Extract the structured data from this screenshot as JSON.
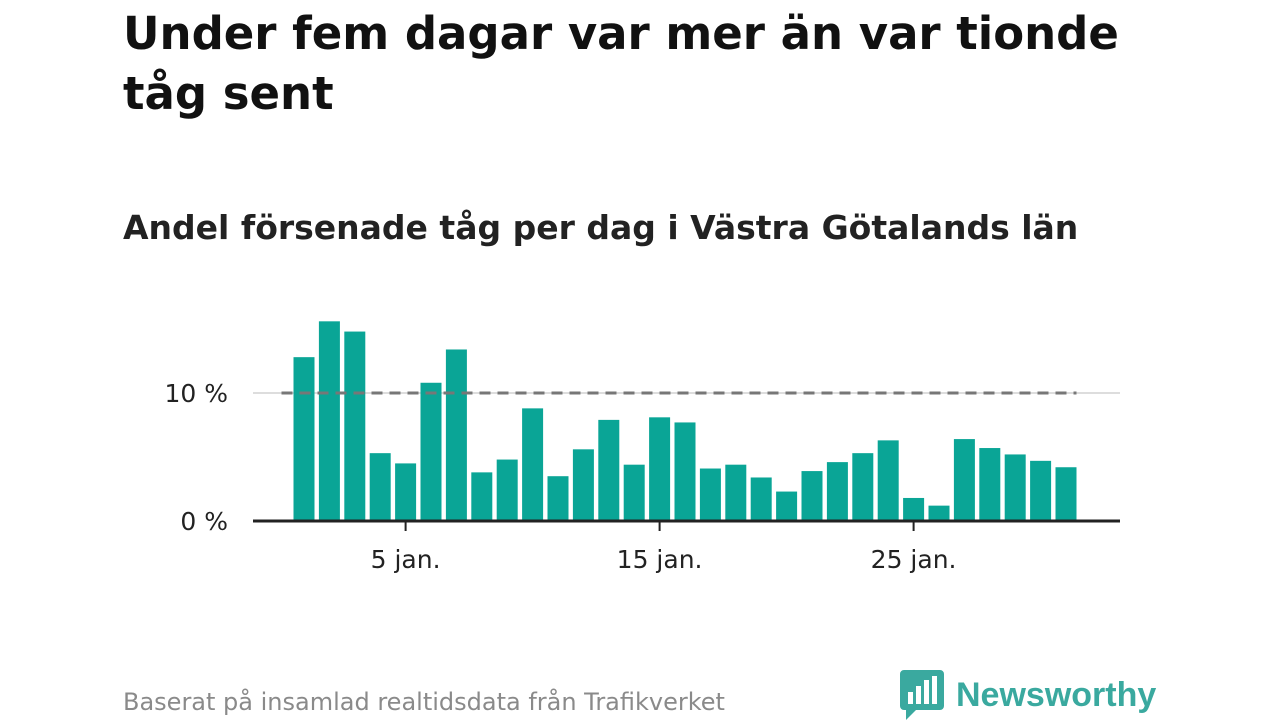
{
  "title": "Under fem dagar var mer än var tionde tåg sent",
  "subtitle": "Andel försenade tåg per dag i Västra Götalands län",
  "footer": "Baserat på insamlad realtidsdata från Trafikverket",
  "logo": {
    "name": "Newsworthy",
    "icon": "newsworthy-chart-bubble-icon",
    "color": "#3aa99f"
  },
  "colors": {
    "bar": "#0aa596",
    "reference": "#777777",
    "axis": "#222222",
    "grid": "#dddddd"
  },
  "chart_data": {
    "type": "bar",
    "x_unit": "day in January",
    "x": [
      1,
      2,
      3,
      4,
      5,
      6,
      7,
      8,
      9,
      10,
      11,
      12,
      13,
      14,
      15,
      16,
      17,
      18,
      19,
      20,
      21,
      22,
      23,
      24,
      25,
      26,
      27,
      28,
      29,
      30,
      31
    ],
    "values": [
      12.8,
      15.6,
      14.8,
      5.3,
      4.5,
      10.8,
      13.4,
      3.8,
      4.8,
      8.8,
      3.5,
      5.6,
      7.9,
      4.4,
      8.1,
      7.7,
      4.1,
      4.4,
      3.4,
      2.3,
      3.9,
      4.6,
      5.3,
      6.3,
      1.8,
      1.2,
      6.4,
      5.7,
      5.2,
      4.7,
      4.2
    ],
    "ylim": [
      0,
      16
    ],
    "yticks": [
      {
        "value": 0,
        "label": "0 %"
      },
      {
        "value": 10,
        "label": "10 %"
      }
    ],
    "xticks": [
      {
        "value": 5,
        "label": "5 jan."
      },
      {
        "value": 15,
        "label": "15 jan."
      },
      {
        "value": 25,
        "label": "25 jan."
      }
    ],
    "reference_line": {
      "value": 10,
      "style": "dashed"
    },
    "grid": "horizontal at 10 %",
    "legend": "none"
  }
}
